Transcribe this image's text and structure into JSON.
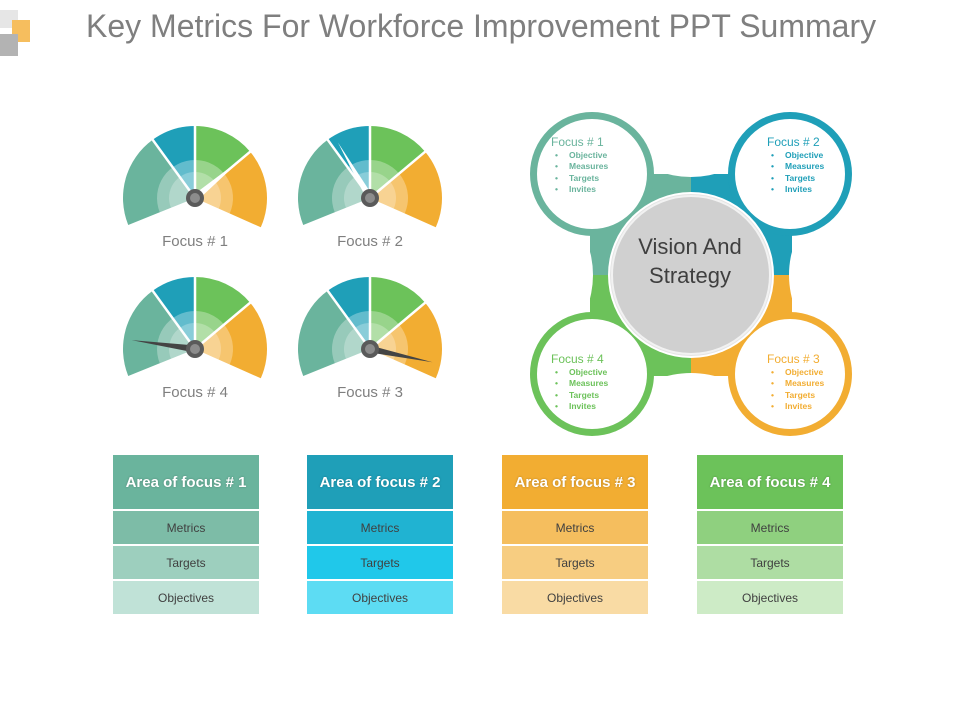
{
  "title": "Key Metrics For Workforce Improvement PPT Summary",
  "colors": {
    "teal": "#6ab49d",
    "blue": "#1f9fb8",
    "green": "#6cc25a",
    "orange": "#f2ad32"
  },
  "gauges": [
    {
      "label": "Focus # 1",
      "needle_angle_deg": 50,
      "needle_color": "#ffffff"
    },
    {
      "label": "Focus # 2",
      "needle_angle_deg": -30,
      "needle_color": "#ffffff"
    },
    {
      "label": "Focus # 4",
      "needle_angle_deg": -82,
      "needle_color": "#444444"
    },
    {
      "label": "Focus # 3",
      "needle_angle_deg": 102,
      "needle_color": "#444444"
    }
  ],
  "vision": {
    "center_label": "Vision And Strategy",
    "focuses": [
      {
        "title": "Focus # 1",
        "items": [
          "Objective",
          "Measures",
          "Targets",
          "Invites"
        ],
        "color": "#6ab49d"
      },
      {
        "title": "Focus # 2",
        "items": [
          "Objective",
          "Measures",
          "Targets",
          "Invites"
        ],
        "color": "#1f9fb8"
      },
      {
        "title": "Focus # 3",
        "items": [
          "Objective",
          "Measures",
          "Targets",
          "Invites"
        ],
        "color": "#f2ad32"
      },
      {
        "title": "Focus # 4",
        "items": [
          "Objective",
          "Measures",
          "Targets",
          "Invites"
        ],
        "color": "#6cc25a"
      }
    ]
  },
  "areas": [
    {
      "header": "Area of focus # 1",
      "rows": [
        "Metrics",
        "Targets",
        "Objectives"
      ],
      "header_color": "#6ab49d",
      "row_colors": [
        "#7dbca7",
        "#9dcfbe",
        "#c0e2d7"
      ]
    },
    {
      "header": "Area of focus # 2",
      "rows": [
        "Metrics",
        "Targets",
        "Objectives"
      ],
      "header_color": "#1f9fb8",
      "row_colors": [
        "#20b3d2",
        "#20c8ea",
        "#5ddcf3"
      ]
    },
    {
      "header": "Area of focus # 3",
      "rows": [
        "Metrics",
        "Targets",
        "Objectives"
      ],
      "header_color": "#f2ad32",
      "row_colors": [
        "#f5be5e",
        "#f7cd81",
        "#f9dba4"
      ]
    },
    {
      "header": "Area of focus # 4",
      "rows": [
        "Metrics",
        "Targets",
        "Objectives"
      ],
      "header_color": "#6cc25a",
      "row_colors": [
        "#8fd07f",
        "#aedda3",
        "#cdebc6"
      ]
    }
  ]
}
